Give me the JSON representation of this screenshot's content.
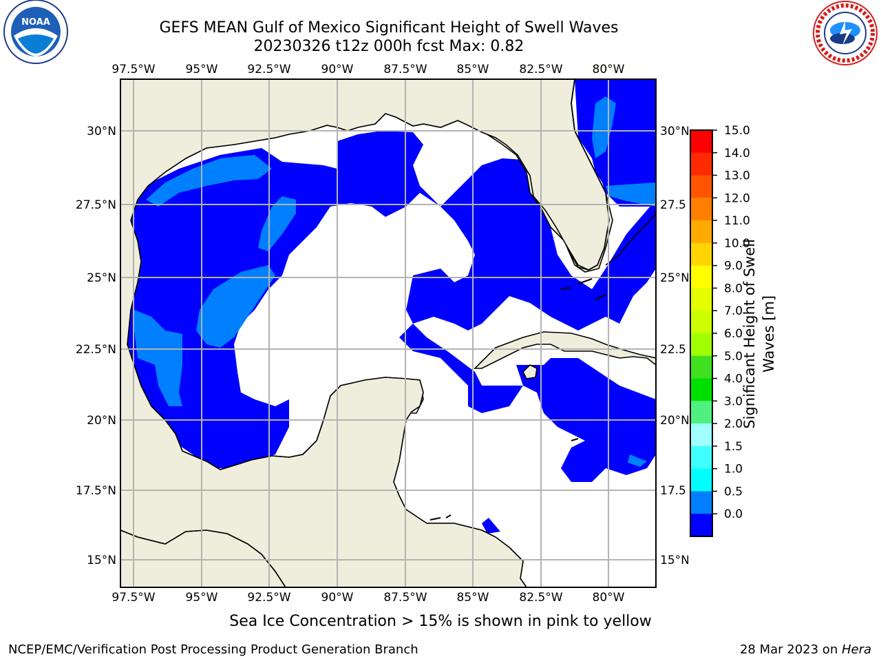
{
  "title": {
    "line1": "GEFS MEAN Gulf of Mexico Significant Height of Swell Waves",
    "line2": "20230326 t12z 000h fcst   Max: 0.82"
  },
  "logos": {
    "left": {
      "icon": "noaa-logo-icon",
      "text": "NOAA"
    },
    "right": {
      "icon": "nws-logo-icon",
      "text": "NATIONAL WEATHER SERVICE"
    }
  },
  "map": {
    "lon_labels": [
      "97.5°W",
      "95°W",
      "92.5°W",
      "90°W",
      "87.5°W",
      "85°W",
      "82.5°W",
      "80°W"
    ],
    "lat_labels_left": [
      "30°N",
      "27.5°N",
      "25°N",
      "22.5°N",
      "20°N",
      "17.5°N",
      "15°N"
    ],
    "lat_labels_right": [
      "30°N",
      "27.5",
      "25°N",
      "22.5",
      "20°N",
      "17.5",
      "15°N"
    ],
    "colors": {
      "land": "#efeedc",
      "ocean_zero": "#ffffff",
      "swell_0_0p5": "#0000ff",
      "swell_0p5_1": "#0080ff",
      "grid": "#b3b3b3"
    }
  },
  "colorbar": {
    "label": "Significant Height of Swell Waves [m]",
    "label_line1": "Significant Height of Swell",
    "label_line2": "Waves [m]",
    "ticks": [
      "15.0",
      "14.0",
      "13.0",
      "12.0",
      "11.0",
      "10.0",
      "9.0",
      "8.0",
      "7.0",
      "6.0",
      "5.0",
      "4.0",
      "3.0",
      "2.0",
      "1.5",
      "1.0",
      "0.5",
      "0.0"
    ],
    "colors_top_to_bottom": [
      "#ff0000",
      "#ff2a00",
      "#ff5500",
      "#ff8000",
      "#ffaa00",
      "#ffd400",
      "#ffff00",
      "#e6ff00",
      "#ccff00",
      "#a0ff00",
      "#40e020",
      "#00e000",
      "#50f080",
      "#a0ffff",
      "#40ffff",
      "#00ffff",
      "#0080ff",
      "#0000ff"
    ]
  },
  "footer": {
    "sea_ice": "Sea Ice Concentration > 15% is shown in pink to yellow",
    "credit": "NCEP/EMC/Verification Post Processing Product Generation Branch",
    "date": "28 Mar 2023 on ",
    "host": "Hera"
  }
}
